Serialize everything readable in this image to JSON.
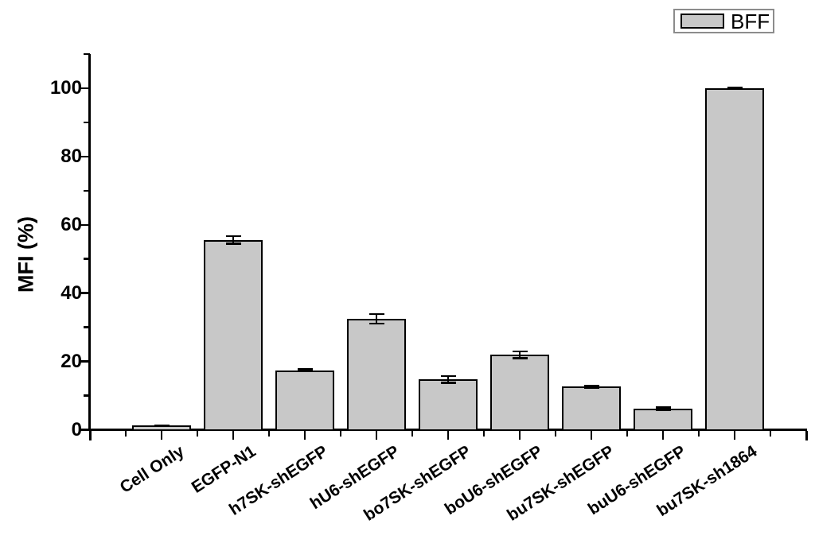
{
  "figure": {
    "legend": {
      "label": "BFF",
      "swatch_color": "#c8c8c8"
    },
    "colors": {
      "bar_fill": "#c8c8c8",
      "bar_border": "#000000",
      "axis": "#000000",
      "background": "#ffffff"
    }
  },
  "chart_data": {
    "type": "bar",
    "title": "",
    "xlabel": "",
    "ylabel": "MFI (%)",
    "ylim": [
      0,
      110
    ],
    "grid": false,
    "legend_position": "top-right",
    "y_major_ticks": [
      0,
      20,
      40,
      60,
      80,
      100
    ],
    "y_minor_ticks": [
      10,
      30,
      50,
      70,
      90,
      110
    ],
    "categories": [
      "Cell Only",
      "EGFP-N1",
      "h7SK-shEGFP",
      "hU6-shEGFP",
      "bo7SK-shEGFP",
      "boU6-shEGFP",
      "bu7SK-shEGFP",
      "buU6-shEGFP",
      "bu7SK-sh1864"
    ],
    "series": [
      {
        "name": "BFF",
        "values": [
          1.2,
          55.6,
          17.4,
          32.5,
          14.7,
          21.9,
          12.6,
          6.1,
          100.0
        ],
        "errors": [
          0.1,
          1.1,
          0.3,
          1.4,
          1.0,
          1.0,
          0.3,
          0.4,
          0.2
        ]
      }
    ]
  }
}
